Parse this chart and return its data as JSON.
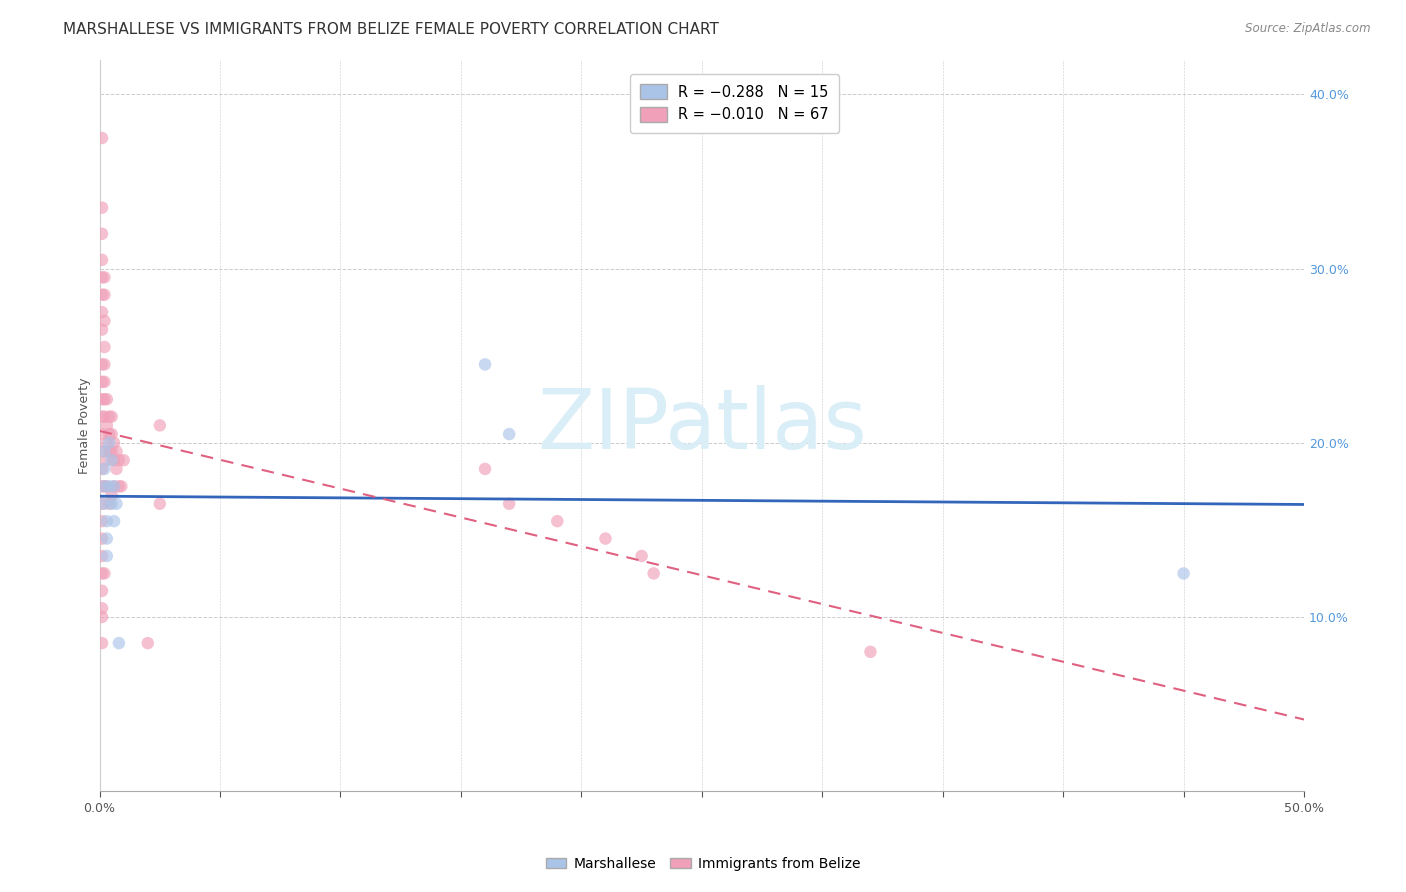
{
  "title": "MARSHALLESE VS IMMIGRANTS FROM BELIZE FEMALE POVERTY CORRELATION CHART",
  "source": "Source: ZipAtlas.com",
  "ylabel": "Female Poverty",
  "xlim": [
    0,
    0.5
  ],
  "ylim": [
    0,
    0.42
  ],
  "xtick_positions": [
    0.0,
    0.05,
    0.1,
    0.15,
    0.2,
    0.25,
    0.3,
    0.35,
    0.4,
    0.45,
    0.5
  ],
  "xtick_labels_show": {
    "0.0": "0.0%",
    "0.50": "50.0%"
  },
  "yticks_right": [
    0.1,
    0.2,
    0.3,
    0.4
  ],
  "yticklabels_right": [
    "10.0%",
    "20.0%",
    "30.0%",
    "40.0%"
  ],
  "grid_color": "#cccccc",
  "marshallese_x": [
    0.002,
    0.002,
    0.002,
    0.002,
    0.003,
    0.003,
    0.003,
    0.004,
    0.004,
    0.005,
    0.005,
    0.006,
    0.006,
    0.007,
    0.008,
    0.16,
    0.17,
    0.45
  ],
  "marshallese_y": [
    0.195,
    0.185,
    0.175,
    0.165,
    0.155,
    0.145,
    0.135,
    0.2,
    0.175,
    0.19,
    0.165,
    0.175,
    0.155,
    0.165,
    0.085,
    0.245,
    0.205,
    0.125
  ],
  "belize_x": [
    0.001,
    0.001,
    0.001,
    0.001,
    0.001,
    0.001,
    0.001,
    0.001,
    0.001,
    0.001,
    0.001,
    0.001,
    0.001,
    0.001,
    0.001,
    0.001,
    0.001,
    0.001,
    0.001,
    0.001,
    0.001,
    0.001,
    0.001,
    0.001,
    0.001,
    0.002,
    0.002,
    0.002,
    0.002,
    0.002,
    0.002,
    0.002,
    0.002,
    0.002,
    0.002,
    0.003,
    0.003,
    0.003,
    0.003,
    0.003,
    0.004,
    0.004,
    0.004,
    0.004,
    0.005,
    0.005,
    0.005,
    0.005,
    0.006,
    0.006,
    0.006,
    0.007,
    0.007,
    0.008,
    0.008,
    0.009,
    0.01,
    0.02,
    0.025,
    0.025,
    0.16,
    0.17,
    0.19,
    0.21,
    0.225,
    0.23,
    0.32
  ],
  "belize_y": [
    0.375,
    0.335,
    0.32,
    0.305,
    0.295,
    0.285,
    0.275,
    0.265,
    0.245,
    0.235,
    0.225,
    0.215,
    0.205,
    0.195,
    0.185,
    0.175,
    0.165,
    0.155,
    0.145,
    0.135,
    0.125,
    0.115,
    0.105,
    0.1,
    0.085,
    0.295,
    0.285,
    0.27,
    0.255,
    0.245,
    0.235,
    0.225,
    0.215,
    0.175,
    0.125,
    0.225,
    0.21,
    0.2,
    0.19,
    0.175,
    0.215,
    0.205,
    0.195,
    0.165,
    0.215,
    0.205,
    0.195,
    0.17,
    0.2,
    0.19,
    0.175,
    0.195,
    0.185,
    0.19,
    0.175,
    0.175,
    0.19,
    0.085,
    0.21,
    0.165,
    0.185,
    0.165,
    0.155,
    0.145,
    0.135,
    0.125,
    0.08
  ],
  "marshallese_color": "#aac4e8",
  "belize_color": "#f0a0b8",
  "marshallese_line_color": "#3366bb",
  "belize_line_color": "#e06080",
  "background_color": "#ffffff",
  "title_fontsize": 11,
  "axis_label_fontsize": 9,
  "tick_fontsize": 9,
  "marker_size": 9,
  "marker_alpha": 0.65,
  "watermark_text": "ZIPatlas",
  "watermark_color": "#daeef8",
  "watermark_fontsize": 60
}
